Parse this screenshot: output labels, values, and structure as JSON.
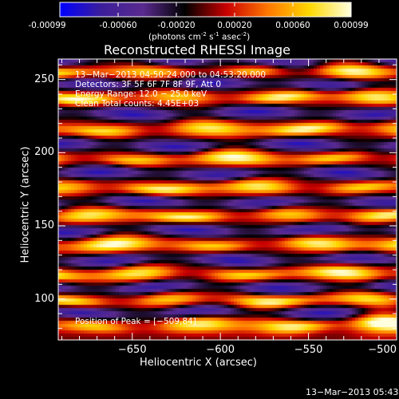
{
  "colorbar": {
    "tick_labels": [
      "-0.00099",
      "-0.00060",
      "-0.00020",
      "0.00020",
      "0.00060",
      "0.00099"
    ],
    "label_prefix": "(photons cm",
    "label_sup1": "-2",
    "label_mid1": " s",
    "label_sup2": "-1",
    "label_mid2": " asec",
    "label_sup3": "-2",
    "label_suffix": ")",
    "colors": [
      "#0000ff",
      "#3c1e9a",
      "#5a2a8f",
      "#000000",
      "#c80000",
      "#ff7800",
      "#ffd800",
      "#ffffe0"
    ]
  },
  "chart_data": {
    "type": "heatmap",
    "title": "Reconstructed RHESSI Image",
    "xlabel": "Heliocentric X (arcsec)",
    "ylabel": "Heliocentric Y (arcsec)",
    "xlim": [
      -692,
      -500
    ],
    "ylim": [
      72,
      264
    ],
    "x_ticks": [
      -650,
      -600,
      -550,
      -500
    ],
    "x_tick_labels": [
      "−650",
      "−600",
      "−550",
      "−500"
    ],
    "y_ticks": [
      100,
      150,
      200,
      250
    ],
    "y_tick_labels": [
      "100",
      "150",
      "200",
      "250"
    ],
    "zlim": [
      -0.00099,
      0.00099
    ],
    "colormap": "rhessi-blue-purple-black-red-yellow-white",
    "peak_position": [
      -509,
      84
    ],
    "annotations": [
      "13−Mar−2013 04:50:24.000 to 04:53:20.000",
      "Detectors: 3F 5F 6F 7F 8F 9F, Att 0",
      "Energy Range: 12.0 − 25.0 keV",
      "Clean     Total counts: 4.45E+03"
    ],
    "peak_label": "Position of Peak = [−509,84]",
    "bands": [
      {
        "type": "positive",
        "y": [
          82,
          99,
          117,
          137,
          157,
          176,
          196,
          216,
          238,
          256
        ]
      },
      {
        "type": "negative",
        "y": [
          91,
          108,
          127,
          147,
          166,
          186,
          205,
          227,
          247,
          262
        ]
      }
    ]
  },
  "timestamp": "13−Mar−2013 05:43"
}
